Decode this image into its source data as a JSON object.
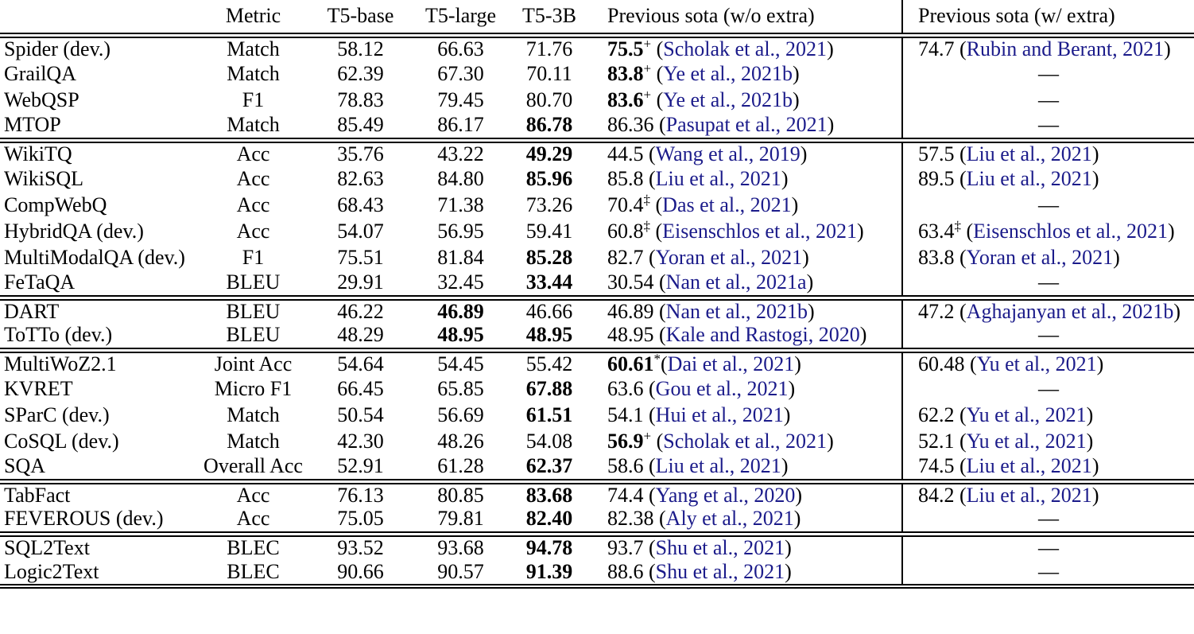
{
  "table": {
    "citation_color": "#1b1b8a",
    "dash": "—",
    "columns": [
      {
        "label": ""
      },
      {
        "label": "Metric"
      },
      {
        "label": "T5-base"
      },
      {
        "label": "T5-large"
      },
      {
        "label": "T5-3B"
      },
      {
        "label": "Previous sota (w/o extra)"
      },
      {
        "label": "Previous sota (w/ extra)"
      }
    ],
    "sections": [
      {
        "rows": [
          {
            "task": "Spider (dev.)",
            "metric": "Match",
            "t5_base": {
              "text": "58.12"
            },
            "t5_large": {
              "text": "66.63"
            },
            "t5_3b": {
              "text": "71.76"
            },
            "sota_wo": {
              "value": "75.5",
              "sup": "+",
              "bold": true,
              "cite": "Scholak et al., 2021"
            },
            "sota_w": {
              "value": "74.7",
              "cite": "Rubin and Berant, 2021"
            }
          },
          {
            "task": "GrailQA",
            "metric": "Match",
            "t5_base": {
              "text": "62.39"
            },
            "t5_large": {
              "text": "67.30"
            },
            "t5_3b": {
              "text": "70.11"
            },
            "sota_wo": {
              "value": "83.8",
              "sup": "+",
              "bold": true,
              "cite": "Ye et al., 2021b"
            },
            "sota_w": {
              "dash": true
            }
          },
          {
            "task": "WebQSP",
            "metric": "F1",
            "t5_base": {
              "text": "78.83"
            },
            "t5_large": {
              "text": "79.45"
            },
            "t5_3b": {
              "text": "80.70"
            },
            "sota_wo": {
              "value": "83.6",
              "sup": "+",
              "bold": true,
              "cite": "Ye et al., 2021b"
            },
            "sota_w": {
              "dash": true
            }
          },
          {
            "task": "MTOP",
            "metric": "Match",
            "t5_base": {
              "text": "85.49"
            },
            "t5_large": {
              "text": "86.17"
            },
            "t5_3b": {
              "text": "86.78",
              "bold": true
            },
            "sota_wo": {
              "value": "86.36",
              "cite": "Pasupat et al., 2021"
            },
            "sota_w": {
              "dash": true
            }
          }
        ]
      },
      {
        "rows": [
          {
            "task": "WikiTQ",
            "metric": "Acc",
            "t5_base": {
              "text": "35.76"
            },
            "t5_large": {
              "text": "43.22"
            },
            "t5_3b": {
              "text": "49.29",
              "bold": true
            },
            "sota_wo": {
              "value": "44.5",
              "cite": "Wang et al., 2019"
            },
            "sota_w": {
              "value": "57.5",
              "cite": "Liu et al., 2021"
            }
          },
          {
            "task": "WikiSQL",
            "metric": "Acc",
            "t5_base": {
              "text": "82.63"
            },
            "t5_large": {
              "text": "84.80"
            },
            "t5_3b": {
              "text": "85.96",
              "bold": true
            },
            "sota_wo": {
              "value": "85.8",
              "cite": "Liu et al., 2021"
            },
            "sota_w": {
              "value": "89.5",
              "cite": "Liu et al., 2021"
            }
          },
          {
            "task": "CompWebQ",
            "metric": "Acc",
            "t5_base": {
              "text": "68.43"
            },
            "t5_large": {
              "text": "71.38"
            },
            "t5_3b": {
              "text": "73.26"
            },
            "sota_wo": {
              "value": "70.4",
              "sup": "‡",
              "cite": "Das et al., 2021"
            },
            "sota_w": {
              "dash": true
            }
          },
          {
            "task": "HybridQA (dev.)",
            "metric": "Acc",
            "t5_base": {
              "text": "54.07"
            },
            "t5_large": {
              "text": "56.95"
            },
            "t5_3b": {
              "text": "59.41"
            },
            "sota_wo": {
              "value": "60.8",
              "sup": "‡",
              "cite": "Eisenschlos et al., 2021"
            },
            "sota_w": {
              "value": "63.4",
              "sup": "‡",
              "cite": "Eisenschlos et al., 2021"
            }
          },
          {
            "task": "MultiModalQA (dev.)",
            "metric": "F1",
            "t5_base": {
              "text": "75.51"
            },
            "t5_large": {
              "text": "81.84"
            },
            "t5_3b": {
              "text": "85.28",
              "bold": true
            },
            "sota_wo": {
              "value": "82.7",
              "cite": "Yoran et al., 2021"
            },
            "sota_w": {
              "value": "83.8",
              "cite": "Yoran et al., 2021"
            }
          },
          {
            "task": "FeTaQA",
            "metric": "BLEU",
            "t5_base": {
              "text": "29.91"
            },
            "t5_large": {
              "text": "32.45"
            },
            "t5_3b": {
              "text": "33.44",
              "bold": true
            },
            "sota_wo": {
              "value": "30.54",
              "cite": "Nan et al., 2021a"
            },
            "sota_w": {
              "dash": true
            }
          }
        ]
      },
      {
        "rows": [
          {
            "task": "DART",
            "metric": "BLEU",
            "t5_base": {
              "text": "46.22"
            },
            "t5_large": {
              "text": "46.89",
              "bold": true
            },
            "t5_3b": {
              "text": "46.66"
            },
            "sota_wo": {
              "value": "46.89",
              "cite": "Nan et al., 2021b"
            },
            "sota_w": {
              "value": "47.2",
              "cite": "Aghajanyan et al., 2021b"
            }
          },
          {
            "task": "ToTTo (dev.)",
            "metric": "BLEU",
            "t5_base": {
              "text": "48.29"
            },
            "t5_large": {
              "text": "48.95",
              "bold": true
            },
            "t5_3b": {
              "text": "48.95",
              "bold": true
            },
            "sota_wo": {
              "value": "48.95",
              "cite": "Kale and Rastogi, 2020"
            },
            "sota_w": {
              "dash": true
            }
          }
        ]
      },
      {
        "rows": [
          {
            "task": "MultiWoZ2.1",
            "metric": "Joint Acc",
            "t5_base": {
              "text": "54.64"
            },
            "t5_large": {
              "text": "54.45"
            },
            "t5_3b": {
              "text": "55.42"
            },
            "sota_wo": {
              "value": "60.61",
              "sup": "*",
              "bold": true,
              "gap": false,
              "cite": "Dai et al., 2021"
            },
            "sota_w": {
              "value": "60.48",
              "cite": "Yu et al., 2021"
            }
          },
          {
            "task": "KVRET",
            "metric": "Micro F1",
            "t5_base": {
              "text": "66.45"
            },
            "t5_large": {
              "text": "65.85"
            },
            "t5_3b": {
              "text": "67.88",
              "bold": true
            },
            "sota_wo": {
              "value": "63.6",
              "cite": "Gou et al., 2021"
            },
            "sota_w": {
              "dash": true
            }
          },
          {
            "task": "SParC (dev.)",
            "metric": "Match",
            "t5_base": {
              "text": "50.54"
            },
            "t5_large": {
              "text": "56.69"
            },
            "t5_3b": {
              "text": "61.51",
              "bold": true
            },
            "sota_wo": {
              "value": "54.1",
              "cite": "Hui et al., 2021"
            },
            "sota_w": {
              "value": "62.2",
              "cite": "Yu et al., 2021"
            }
          },
          {
            "task": "CoSQL (dev.)",
            "metric": "Match",
            "t5_base": {
              "text": "42.30"
            },
            "t5_large": {
              "text": "48.26"
            },
            "t5_3b": {
              "text": "54.08"
            },
            "sota_wo": {
              "value": "56.9",
              "sup": "+",
              "bold": true,
              "cite": "Scholak et al., 2021"
            },
            "sota_w": {
              "value": "52.1",
              "cite": "Yu et al., 2021"
            }
          },
          {
            "task": "SQA",
            "metric": "Overall Acc",
            "t5_base": {
              "text": "52.91"
            },
            "t5_large": {
              "text": "61.28"
            },
            "t5_3b": {
              "text": "62.37",
              "bold": true
            },
            "sota_wo": {
              "value": "58.6",
              "cite": "Liu et al., 2021"
            },
            "sota_w": {
              "value": "74.5",
              "cite": "Liu et al., 2021"
            }
          }
        ]
      },
      {
        "rows": [
          {
            "task": "TabFact",
            "metric": "Acc",
            "t5_base": {
              "text": "76.13"
            },
            "t5_large": {
              "text": "80.85"
            },
            "t5_3b": {
              "text": "83.68",
              "bold": true
            },
            "sota_wo": {
              "value": "74.4",
              "cite": "Yang et al., 2020"
            },
            "sota_w": {
              "value": "84.2",
              "cite": "Liu et al., 2021"
            }
          },
          {
            "task": "FEVEROUS (dev.)",
            "metric": "Acc",
            "t5_base": {
              "text": "75.05"
            },
            "t5_large": {
              "text": "79.81"
            },
            "t5_3b": {
              "text": "82.40",
              "bold": true
            },
            "sota_wo": {
              "value": "82.38",
              "cite": "Aly et al., 2021"
            },
            "sota_w": {
              "dash": true
            }
          }
        ]
      },
      {
        "rows": [
          {
            "task": "SQL2Text",
            "metric": "BLEC",
            "t5_base": {
              "text": "93.52"
            },
            "t5_large": {
              "text": "93.68"
            },
            "t5_3b": {
              "text": "94.78",
              "bold": true
            },
            "sota_wo": {
              "value": "93.7",
              "cite": "Shu et al., 2021"
            },
            "sota_w": {
              "dash": true
            }
          },
          {
            "task": "Logic2Text",
            "metric": "BLEC",
            "t5_base": {
              "text": "90.66"
            },
            "t5_large": {
              "text": "90.57"
            },
            "t5_3b": {
              "text": "91.39",
              "bold": true
            },
            "sota_wo": {
              "value": "88.6",
              "cite": "Shu et al., 2021"
            },
            "sota_w": {
              "dash": true
            }
          }
        ]
      }
    ]
  }
}
